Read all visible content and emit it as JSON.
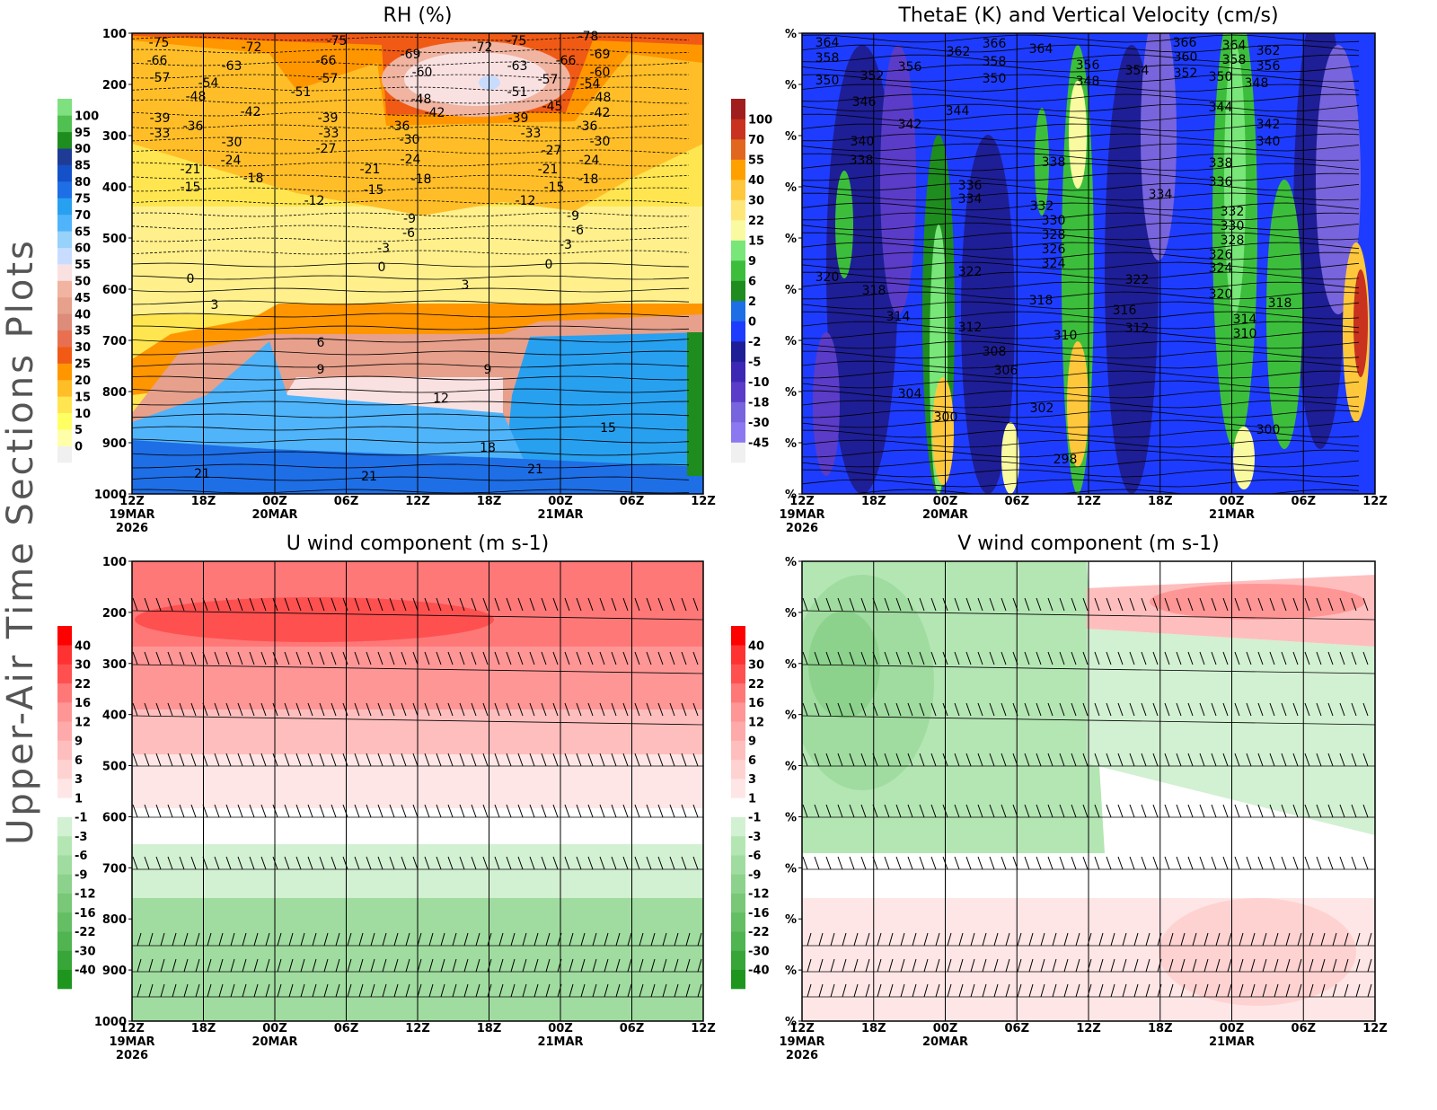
{
  "side_title": "Upper-Air Time Sections Plots",
  "chart_data": [
    {
      "type": "contour",
      "title": "RH (%)",
      "ylim": [
        1000,
        100
      ],
      "yticks": [
        100,
        200,
        300,
        400,
        500,
        600,
        700,
        800,
        900,
        1000
      ],
      "xticks": [
        {
          "label": "12Z",
          "date": "19MAR",
          "year": "2026"
        },
        {
          "label": "18Z"
        },
        {
          "label": "00Z",
          "date": "20MAR"
        },
        {
          "label": "06Z"
        },
        {
          "label": "12Z"
        },
        {
          "label": "18Z"
        },
        {
          "label": "00Z",
          "date": "21MAR"
        },
        {
          "label": "06Z"
        },
        {
          "label": "12Z"
        }
      ],
      "colorbar": {
        "levels": [
          0,
          5,
          10,
          15,
          20,
          25,
          30,
          35,
          40,
          45,
          50,
          55,
          60,
          65,
          70,
          75,
          80,
          85,
          90,
          95,
          100
        ],
        "colors": [
          "#f0f0f0",
          "#ffffaa",
          "#ffff64",
          "#ffe650",
          "#ffbe28",
          "#ff9600",
          "#f05a14",
          "#e87050",
          "#dc8c78",
          "#e6a08c",
          "#f0b4a0",
          "#fae1e1",
          "#c8dcff",
          "#96d2fa",
          "#50b4fa",
          "#28a0f0",
          "#1e6ee6",
          "#1450c8",
          "#1e3c96",
          "#1e8c1e",
          "#50c050",
          "#7ee07e"
        ]
      },
      "contour_labels": [
        -75,
        -72,
        -75,
        -69,
        -72,
        -75,
        -78,
        -66,
        -63,
        -66,
        -60,
        -63,
        -66,
        -69,
        -57,
        -54,
        -57,
        -51,
        -51,
        -57,
        -54,
        -60,
        -48,
        -48,
        -42,
        -45,
        -48,
        -42,
        -42,
        -39,
        -36,
        -39,
        -36,
        -39,
        -36,
        -33,
        -33,
        -30,
        -33,
        -30,
        -30,
        -27,
        -27,
        -24,
        -24,
        -21,
        -21,
        -21,
        -24,
        -18,
        -18,
        -18,
        -15,
        -15,
        -15,
        -12,
        -12,
        -9,
        -9,
        -6,
        -6,
        -3,
        -3,
        0,
        0,
        0,
        3,
        3,
        6,
        9,
        9,
        12,
        15,
        18,
        21,
        21,
        21
      ]
    },
    {
      "type": "contour",
      "title": "ThetaE (K) and Vertical Velocity (cm/s)",
      "ylim": [
        1000,
        100
      ],
      "yticks": [
        {
          "value": 100,
          "label": "%"
        },
        {
          "value": 200,
          "label": "%"
        },
        {
          "value": 300,
          "label": "%"
        },
        {
          "value": 400,
          "label": "%"
        },
        {
          "value": 500,
          "label": "%"
        },
        {
          "value": 600,
          "label": "%"
        },
        {
          "value": 700,
          "label": "%"
        },
        {
          "value": 800,
          "label": "%"
        },
        {
          "value": 900,
          "label": "%"
        },
        {
          "value": 1000,
          "label": "%"
        }
      ],
      "xticks": [
        {
          "label": "12Z",
          "date": "19MAR",
          "year": "2026"
        },
        {
          "label": "18Z"
        },
        {
          "label": "00Z",
          "date": "20MAR"
        },
        {
          "label": "06Z"
        },
        {
          "label": "12Z"
        },
        {
          "label": "18Z"
        },
        {
          "label": "00Z",
          "date": "21MAR"
        },
        {
          "label": "06Z"
        },
        {
          "label": "12Z"
        }
      ],
      "colorbar": {
        "levels": [
          -45,
          -30,
          -18,
          -10,
          -5,
          -2,
          0,
          2,
          6,
          9,
          15,
          22,
          30,
          40,
          55,
          70,
          100
        ],
        "colors": [
          "#f0f0f0",
          "#8c78f0",
          "#7864dc",
          "#5a3cc8",
          "#3c28b4",
          "#1e1e96",
          "#1e3cff",
          "#1e6ee6",
          "#1e8c1e",
          "#3cbe3c",
          "#78e678",
          "#fafaa0",
          "#ffe678",
          "#ffc83c",
          "#ffa000",
          "#e1661e",
          "#c8321e",
          "#a01e1e"
        ]
      },
      "contour_labels": [
        364,
        358,
        350,
        352,
        356,
        362,
        366,
        358,
        350,
        364,
        346,
        342,
        344,
        340,
        338,
        356,
        348,
        354,
        366,
        360,
        352,
        364,
        358,
        350,
        362,
        356,
        348,
        344,
        342,
        340,
        338,
        338,
        336,
        336,
        334,
        334,
        332,
        330,
        328,
        326,
        324,
        332,
        330,
        328,
        326,
        324,
        322,
        322,
        320,
        318,
        320,
        318,
        318,
        316,
        314,
        314,
        312,
        312,
        310,
        310,
        308,
        306,
        304,
        302,
        300,
        300,
        298
      ]
    },
    {
      "type": "contour",
      "title": "U wind component (m s-1)",
      "ylim": [
        1000,
        100
      ],
      "yticks": [
        100,
        200,
        300,
        400,
        500,
        600,
        700,
        800,
        900,
        1000
      ],
      "xticks": [
        {
          "label": "12Z",
          "date": "19MAR",
          "year": "2026"
        },
        {
          "label": "18Z"
        },
        {
          "label": "00Z",
          "date": "20MAR"
        },
        {
          "label": "06Z"
        },
        {
          "label": "12Z"
        },
        {
          "label": "18Z"
        },
        {
          "label": "00Z",
          "date": "21MAR"
        },
        {
          "label": "06Z"
        },
        {
          "label": "12Z"
        }
      ],
      "colorbar": {
        "levels": [
          -40,
          -30,
          -22,
          -16,
          -12,
          -9,
          -6,
          -3,
          -1,
          1,
          3,
          6,
          9,
          12,
          16,
          22,
          30,
          40
        ],
        "colors": [
          "#1e961e",
          "#37a537",
          "#50b450",
          "#64be64",
          "#78c878",
          "#8cd28c",
          "#a0dca0",
          "#b4e6b4",
          "#d2f0d2",
          "#ffffff",
          "#ffe6e6",
          "#ffd2d2",
          "#ffbebe",
          "#ffaaaa",
          "#ff9696",
          "#ff7878",
          "#ff5050",
          "#ff3232",
          "#ff0000"
        ]
      }
    },
    {
      "type": "contour",
      "title": "V wind component (m s-1)",
      "ylim": [
        1000,
        100
      ],
      "yticks": [
        {
          "value": 100,
          "label": "%"
        },
        {
          "value": 200,
          "label": "%"
        },
        {
          "value": 300,
          "label": "%"
        },
        {
          "value": 400,
          "label": "%"
        },
        {
          "value": 500,
          "label": "%"
        },
        {
          "value": 600,
          "label": "%"
        },
        {
          "value": 700,
          "label": "%"
        },
        {
          "value": 800,
          "label": "%"
        },
        {
          "value": 900,
          "label": "%"
        },
        {
          "value": 1000,
          "label": "%"
        }
      ],
      "xticks": [
        {
          "label": "12Z",
          "date": "19MAR",
          "year": "2026"
        },
        {
          "label": "18Z"
        },
        {
          "label": "00Z",
          "date": "20MAR"
        },
        {
          "label": "06Z"
        },
        {
          "label": "12Z"
        },
        {
          "label": "18Z"
        },
        {
          "label": "00Z",
          "date": "21MAR"
        },
        {
          "label": "06Z"
        },
        {
          "label": "12Z"
        }
      ],
      "colorbar": {
        "levels": [
          -40,
          -30,
          -22,
          -16,
          -12,
          -9,
          -6,
          -3,
          -1,
          1,
          3,
          6,
          9,
          12,
          16,
          22,
          30,
          40
        ],
        "colors": [
          "#1e961e",
          "#37a537",
          "#50b450",
          "#64be64",
          "#78c878",
          "#8cd28c",
          "#a0dca0",
          "#b4e6b4",
          "#d2f0d2",
          "#ffffff",
          "#ffe6e6",
          "#ffd2d2",
          "#ffbebe",
          "#ffaaaa",
          "#ff9696",
          "#ff7878",
          "#ff5050",
          "#ff3232",
          "#ff0000"
        ]
      }
    }
  ]
}
